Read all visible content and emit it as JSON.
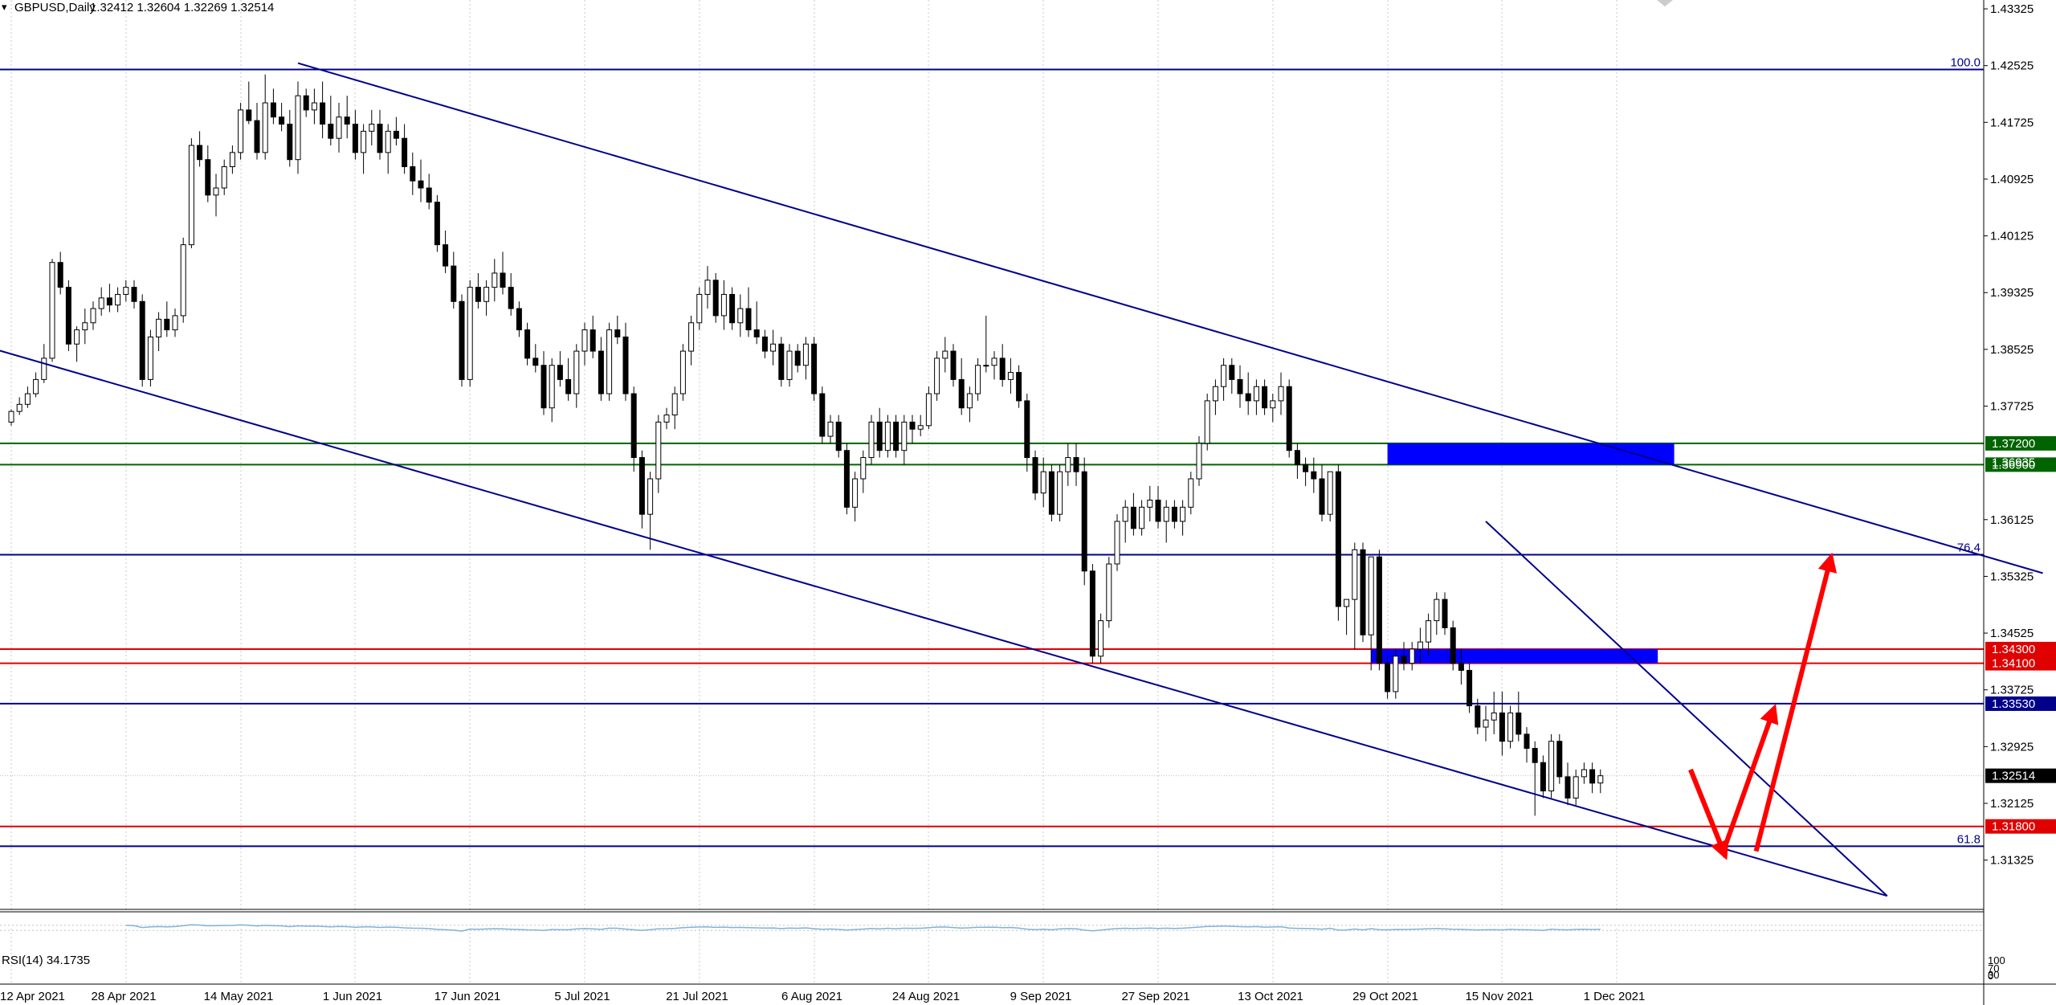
{
  "header": {
    "arrow_glyph": "▾",
    "symbol_title": "GBPUSD,Daily",
    "ohlc": "1.32412 1.32604 1.32269 1.32514"
  },
  "rsi": {
    "label": "RSI(14) 34.1735",
    "scale_top": "100",
    "scale_mid": "70",
    "scale_bottom": "30",
    "scale_zero": "0",
    "color": "#7fb3d5"
  },
  "colors": {
    "candle_bull": "#ffffff",
    "candle_bear": "#000000",
    "channel": "#00008b",
    "support_blue": "#00008b",
    "green_line": "#006400",
    "red_line": "#e00000",
    "zone_blue": "#0000ff",
    "arrow_red": "#ff0000",
    "grid": "#c8c8c8"
  },
  "chart_data": {
    "type": "candlestick",
    "title": "GBPUSD,Daily",
    "symbol": "GBPUSD",
    "timeframe": "Daily",
    "last_ohlc": {
      "open": 1.32412,
      "high": 1.32604,
      "low": 1.32269,
      "close": 1.32514
    },
    "ylim": [
      1.3063,
      1.4345
    ],
    "y_ticks": [
      "1.43325",
      "1.42525",
      "1.41725",
      "1.40925",
      "1.40125",
      "1.39325",
      "1.38525",
      "1.37725",
      "1.36125",
      "1.35325",
      "1.34525",
      "1.33725",
      "1.32925",
      "1.32125",
      "1.31325"
    ],
    "x_ticks": [
      "12 Apr 2021",
      "28 Apr 2021",
      "14 May 2021",
      "1 Jun 2021",
      "17 Jun 2021",
      "5 Jul 2021",
      "21 Jul 2021",
      "6 Aug 2021",
      "24 Aug 2021",
      "9 Sep 2021",
      "27 Sep 2021",
      "13 Oct 2021",
      "29 Oct 2021",
      "15 Nov 2021",
      "1 Dec 2021"
    ],
    "x_tick_index": [
      0,
      14,
      28,
      42,
      56,
      70,
      84,
      98,
      112,
      126,
      140,
      154,
      168,
      182,
      196
    ],
    "grid": true,
    "candles": [
      [
        1.375,
        1.3768,
        1.3745,
        1.3765
      ],
      [
        1.3765,
        1.3785,
        1.376,
        1.3775
      ],
      [
        1.3775,
        1.38,
        1.377,
        1.379
      ],
      [
        1.379,
        1.382,
        1.3785,
        1.381
      ],
      [
        1.381,
        1.386,
        1.3805,
        1.384
      ],
      [
        1.384,
        1.398,
        1.3835,
        1.3975
      ],
      [
        1.3975,
        1.399,
        1.393,
        1.394
      ],
      [
        1.394,
        1.395,
        1.385,
        1.386
      ],
      [
        1.386,
        1.3885,
        1.3835,
        1.388
      ],
      [
        1.388,
        1.391,
        1.386,
        1.389
      ],
      [
        1.389,
        1.392,
        1.388,
        1.391
      ],
      [
        1.391,
        1.394,
        1.39,
        1.3925
      ],
      [
        1.3925,
        1.3945,
        1.3905,
        1.3915
      ],
      [
        1.3915,
        1.394,
        1.3905,
        1.393
      ],
      [
        1.393,
        1.395,
        1.392,
        1.394
      ],
      [
        1.394,
        1.395,
        1.391,
        1.392
      ],
      [
        1.392,
        1.393,
        1.38,
        1.381
      ],
      [
        1.381,
        1.388,
        1.38,
        1.387
      ],
      [
        1.387,
        1.3905,
        1.385,
        1.3895
      ],
      [
        1.3895,
        1.392,
        1.387,
        1.388
      ],
      [
        1.388,
        1.391,
        1.387,
        1.39
      ],
      [
        1.39,
        1.401,
        1.389,
        1.4
      ],
      [
        1.4,
        1.415,
        1.3995,
        1.414
      ],
      [
        1.414,
        1.416,
        1.411,
        1.412
      ],
      [
        1.412,
        1.414,
        1.406,
        1.407
      ],
      [
        1.407,
        1.41,
        1.404,
        1.408
      ],
      [
        1.408,
        1.412,
        1.407,
        1.411
      ],
      [
        1.411,
        1.414,
        1.41,
        1.413
      ],
      [
        1.413,
        1.42,
        1.412,
        1.419
      ],
      [
        1.419,
        1.423,
        1.417,
        1.4175
      ],
      [
        1.4175,
        1.42,
        1.412,
        1.413
      ],
      [
        1.413,
        1.424,
        1.412,
        1.42
      ],
      [
        1.42,
        1.422,
        1.417,
        1.418
      ],
      [
        1.418,
        1.42,
        1.416,
        1.417
      ],
      [
        1.417,
        1.419,
        1.411,
        1.412
      ],
      [
        1.412,
        1.423,
        1.41,
        1.421
      ],
      [
        1.421,
        1.422,
        1.418,
        1.419
      ],
      [
        1.419,
        1.422,
        1.417,
        1.42
      ],
      [
        1.42,
        1.423,
        1.415,
        1.417
      ],
      [
        1.417,
        1.421,
        1.414,
        1.415
      ],
      [
        1.415,
        1.42,
        1.413,
        1.418
      ],
      [
        1.418,
        1.421,
        1.415,
        1.417
      ],
      [
        1.417,
        1.419,
        1.412,
        1.413
      ],
      [
        1.413,
        1.417,
        1.41,
        1.416
      ],
      [
        1.416,
        1.419,
        1.414,
        1.417
      ],
      [
        1.417,
        1.419,
        1.412,
        1.413
      ],
      [
        1.413,
        1.417,
        1.41,
        1.416
      ],
      [
        1.416,
        1.418,
        1.414,
        1.415
      ],
      [
        1.415,
        1.417,
        1.41,
        1.411
      ],
      [
        1.411,
        1.413,
        1.407,
        1.409
      ],
      [
        1.409,
        1.412,
        1.406,
        1.408
      ],
      [
        1.408,
        1.41,
        1.405,
        1.406
      ],
      [
        1.406,
        1.407,
        1.399,
        1.4
      ],
      [
        1.4,
        1.402,
        1.396,
        1.397
      ],
      [
        1.397,
        1.399,
        1.391,
        1.392
      ],
      [
        1.392,
        1.393,
        1.38,
        1.381
      ],
      [
        1.381,
        1.395,
        1.38,
        1.394
      ],
      [
        1.394,
        1.396,
        1.391,
        1.392
      ],
      [
        1.392,
        1.395,
        1.39,
        1.394
      ],
      [
        1.394,
        1.398,
        1.392,
        1.396
      ],
      [
        1.396,
        1.399,
        1.393,
        1.394
      ],
      [
        1.394,
        1.396,
        1.39,
        1.391
      ],
      [
        1.391,
        1.392,
        1.387,
        1.388
      ],
      [
        1.388,
        1.389,
        1.383,
        1.384
      ],
      [
        1.384,
        1.386,
        1.382,
        1.383
      ],
      [
        1.383,
        1.385,
        1.376,
        1.377
      ],
      [
        1.377,
        1.384,
        1.375,
        1.383
      ],
      [
        1.383,
        1.385,
        1.38,
        1.381
      ],
      [
        1.381,
        1.384,
        1.378,
        1.379
      ],
      [
        1.379,
        1.386,
        1.377,
        1.385
      ],
      [
        1.385,
        1.389,
        1.383,
        1.388
      ],
      [
        1.388,
        1.39,
        1.384,
        1.385
      ],
      [
        1.385,
        1.387,
        1.378,
        1.379
      ],
      [
        1.379,
        1.389,
        1.378,
        1.388
      ],
      [
        1.388,
        1.39,
        1.386,
        1.387
      ],
      [
        1.387,
        1.389,
        1.378,
        1.379
      ],
      [
        1.379,
        1.38,
        1.368,
        1.37
      ],
      [
        1.37,
        1.371,
        1.36,
        1.362
      ],
      [
        1.362,
        1.368,
        1.357,
        1.367
      ],
      [
        1.367,
        1.376,
        1.365,
        1.375
      ],
      [
        1.375,
        1.377,
        1.374,
        1.376
      ],
      [
        1.376,
        1.38,
        1.374,
        1.379
      ],
      [
        1.379,
        1.386,
        1.378,
        1.385
      ],
      [
        1.385,
        1.39,
        1.383,
        1.389
      ],
      [
        1.389,
        1.394,
        1.388,
        1.393
      ],
      [
        1.393,
        1.397,
        1.391,
        1.395
      ],
      [
        1.395,
        1.396,
        1.389,
        1.39
      ],
      [
        1.39,
        1.395,
        1.388,
        1.393
      ],
      [
        1.393,
        1.394,
        1.388,
        1.389
      ],
      [
        1.389,
        1.393,
        1.387,
        1.391
      ],
      [
        1.391,
        1.394,
        1.387,
        1.388
      ],
      [
        1.388,
        1.392,
        1.386,
        1.387
      ],
      [
        1.387,
        1.388,
        1.384,
        1.385
      ],
      [
        1.385,
        1.388,
        1.383,
        1.386
      ],
      [
        1.386,
        1.387,
        1.38,
        1.381
      ],
      [
        1.381,
        1.386,
        1.38,
        1.385
      ],
      [
        1.385,
        1.386,
        1.382,
        1.383
      ],
      [
        1.383,
        1.387,
        1.381,
        1.386
      ],
      [
        1.386,
        1.387,
        1.378,
        1.379
      ],
      [
        1.379,
        1.38,
        1.372,
        1.373
      ],
      [
        1.373,
        1.376,
        1.372,
        1.375
      ],
      [
        1.375,
        1.376,
        1.37,
        1.371
      ],
      [
        1.371,
        1.372,
        1.362,
        1.363
      ],
      [
        1.363,
        1.368,
        1.361,
        1.367
      ],
      [
        1.367,
        1.371,
        1.365,
        1.37
      ],
      [
        1.37,
        1.376,
        1.369,
        1.375
      ],
      [
        1.375,
        1.377,
        1.37,
        1.371
      ],
      [
        1.371,
        1.376,
        1.37,
        1.375
      ],
      [
        1.375,
        1.376,
        1.37,
        1.371
      ],
      [
        1.371,
        1.376,
        1.369,
        1.375
      ],
      [
        1.375,
        1.376,
        1.372,
        1.374
      ],
      [
        1.374,
        1.376,
        1.373,
        1.3745
      ],
      [
        1.3745,
        1.38,
        1.374,
        1.379
      ],
      [
        1.379,
        1.385,
        1.378,
        1.384
      ],
      [
        1.384,
        1.387,
        1.382,
        1.385
      ],
      [
        1.385,
        1.386,
        1.38,
        1.381
      ],
      [
        1.381,
        1.384,
        1.376,
        1.377
      ],
      [
        1.377,
        1.38,
        1.375,
        1.379
      ],
      [
        1.379,
        1.384,
        1.378,
        1.383
      ],
      [
        1.383,
        1.39,
        1.382,
        1.383
      ],
      [
        1.383,
        1.385,
        1.381,
        1.384
      ],
      [
        1.384,
        1.386,
        1.38,
        1.381
      ],
      [
        1.381,
        1.384,
        1.379,
        1.382
      ],
      [
        1.382,
        1.383,
        1.377,
        1.378
      ],
      [
        1.378,
        1.379,
        1.368,
        1.37
      ],
      [
        1.37,
        1.371,
        1.364,
        1.365
      ],
      [
        1.365,
        1.37,
        1.363,
        1.368
      ],
      [
        1.368,
        1.369,
        1.361,
        1.362
      ],
      [
        1.362,
        1.369,
        1.361,
        1.368
      ],
      [
        1.368,
        1.372,
        1.366,
        1.37
      ],
      [
        1.37,
        1.372,
        1.366,
        1.368
      ],
      [
        1.368,
        1.37,
        1.352,
        1.354
      ],
      [
        1.354,
        1.355,
        1.341,
        1.342
      ],
      [
        1.342,
        1.348,
        1.341,
        1.347
      ],
      [
        1.347,
        1.356,
        1.346,
        1.355
      ],
      [
        1.355,
        1.362,
        1.354,
        1.361
      ],
      [
        1.361,
        1.364,
        1.358,
        1.363
      ],
      [
        1.363,
        1.365,
        1.359,
        1.36
      ],
      [
        1.36,
        1.364,
        1.359,
        1.363
      ],
      [
        1.363,
        1.366,
        1.361,
        1.364
      ],
      [
        1.364,
        1.366,
        1.36,
        1.361
      ],
      [
        1.361,
        1.364,
        1.358,
        1.363
      ],
      [
        1.363,
        1.364,
        1.36,
        1.361
      ],
      [
        1.361,
        1.364,
        1.359,
        1.363
      ],
      [
        1.363,
        1.368,
        1.362,
        1.367
      ],
      [
        1.367,
        1.373,
        1.366,
        1.372
      ],
      [
        1.372,
        1.379,
        1.371,
        1.378
      ],
      [
        1.378,
        1.381,
        1.376,
        1.38
      ],
      [
        1.38,
        1.384,
        1.378,
        1.383
      ],
      [
        1.383,
        1.384,
        1.379,
        1.381
      ],
      [
        1.381,
        1.383,
        1.377,
        1.379
      ],
      [
        1.379,
        1.382,
        1.376,
        1.378
      ],
      [
        1.378,
        1.381,
        1.376,
        1.38
      ],
      [
        1.38,
        1.381,
        1.376,
        1.377
      ],
      [
        1.377,
        1.379,
        1.375,
        1.378
      ],
      [
        1.378,
        1.382,
        1.376,
        1.38
      ],
      [
        1.38,
        1.381,
        1.37,
        1.371
      ],
      [
        1.371,
        1.372,
        1.367,
        1.369
      ],
      [
        1.369,
        1.37,
        1.366,
        1.368
      ],
      [
        1.368,
        1.37,
        1.365,
        1.367
      ],
      [
        1.367,
        1.369,
        1.361,
        1.362
      ],
      [
        1.362,
        1.368,
        1.361,
        1.368
      ],
      [
        1.368,
        1.369,
        1.347,
        1.349
      ],
      [
        1.349,
        1.35,
        1.345,
        1.35
      ],
      [
        1.35,
        1.358,
        1.343,
        1.357
      ],
      [
        1.357,
        1.358,
        1.344,
        1.345
      ],
      [
        1.345,
        1.356,
        1.34,
        1.356
      ],
      [
        1.356,
        1.357,
        1.34,
        1.341
      ],
      [
        1.341,
        1.342,
        1.336,
        1.337
      ],
      [
        1.337,
        1.343,
        1.336,
        1.342
      ],
      [
        1.342,
        1.344,
        1.34,
        1.341
      ],
      [
        1.341,
        1.344,
        1.34,
        1.343
      ],
      [
        1.343,
        1.346,
        1.341,
        1.344
      ],
      [
        1.344,
        1.348,
        1.342,
        1.347
      ],
      [
        1.347,
        1.351,
        1.345,
        1.35
      ],
      [
        1.35,
        1.351,
        1.345,
        1.346
      ],
      [
        1.346,
        1.347,
        1.34,
        1.341
      ],
      [
        1.341,
        1.343,
        1.338,
        1.34
      ],
      [
        1.34,
        1.341,
        1.334,
        1.335
      ],
      [
        1.335,
        1.336,
        1.331,
        1.332
      ],
      [
        1.332,
        1.335,
        1.33,
        1.333
      ],
      [
        1.333,
        1.337,
        1.331,
        1.334
      ],
      [
        1.334,
        1.337,
        1.328,
        1.33
      ],
      [
        1.33,
        1.335,
        1.329,
        1.334
      ],
      [
        1.334,
        1.337,
        1.33,
        1.331
      ],
      [
        1.331,
        1.332,
        1.327,
        1.329
      ],
      [
        1.329,
        1.33,
        1.3195,
        1.327
      ],
      [
        1.327,
        1.328,
        1.322,
        1.323
      ],
      [
        1.323,
        1.331,
        1.322,
        1.33
      ],
      [
        1.33,
        1.331,
        1.324,
        1.325
      ],
      [
        1.325,
        1.327,
        1.321,
        1.322
      ],
      [
        1.322,
        1.326,
        1.321,
        1.325
      ],
      [
        1.325,
        1.327,
        1.324,
        1.326
      ],
      [
        1.326,
        1.327,
        1.3227,
        1.3241
      ],
      [
        1.32412,
        1.32604,
        1.32269,
        1.32514
      ]
    ],
    "horizontal_levels": [
      {
        "price": 1.4247,
        "color": "navy",
        "label": "100.0",
        "label_kind": "fib"
      },
      {
        "price": 1.372,
        "color": "green",
        "label": "1.37200",
        "label_kind": "tag"
      },
      {
        "price": 1.369,
        "color": "green",
        "label": "1.36900",
        "label_kind": "tag"
      },
      {
        "price": 1.3563,
        "color": "navy",
        "label": "76.4",
        "label_kind": "fib"
      },
      {
        "price": 1.343,
        "color": "red",
        "label": "1.34300",
        "label_kind": "tag"
      },
      {
        "price": 1.341,
        "color": "red",
        "label": "1.34100",
        "label_kind": "tag"
      },
      {
        "price": 1.3353,
        "color": "navy",
        "label": "1.33530",
        "label_kind": "tag"
      },
      {
        "price": 1.318,
        "color": "red",
        "label": "1.31800",
        "label_kind": "tag"
      },
      {
        "price": 1.3152,
        "color": "navy",
        "label": "61.8",
        "label_kind": "fib"
      }
    ],
    "current_price_tag": "1.32514",
    "hidden_tag": "1.36935",
    "trendlines": [
      {
        "from": {
          "bar": 35,
          "price": 1.4256
        },
        "to": {
          "bar": 248,
          "price": 1.3537
        }
      },
      {
        "from": {
          "bar": -6,
          "price": 1.3866
        },
        "to": {
          "bar": 229,
          "price": 1.3082
        }
      },
      {
        "from": {
          "bar": 180,
          "price": 1.361
        },
        "to": {
          "bar": 229,
          "price": 1.3082
        }
      }
    ],
    "zones": [
      {
        "from_bar": 168,
        "to_bar": 203,
        "top": 1.372,
        "bottom": 1.369
      },
      {
        "from_bar": 166,
        "to_bar": 201,
        "top": 1.343,
        "bottom": 1.341
      }
    ],
    "projection_path": [
      {
        "bar": 205,
        "price": 1.326
      },
      {
        "bar": 209,
        "price": 1.3145
      },
      {
        "bar": 215,
        "price": 1.334
      }
    ],
    "projection_arrow": [
      {
        "bar": 213,
        "price": 1.3145
      },
      {
        "bar": 222,
        "price": 1.3553
      }
    ],
    "rsi": {
      "period": 14,
      "value": 34.1735,
      "ylim": [
        0,
        100
      ],
      "levels": [
        70,
        30
      ]
    }
  }
}
